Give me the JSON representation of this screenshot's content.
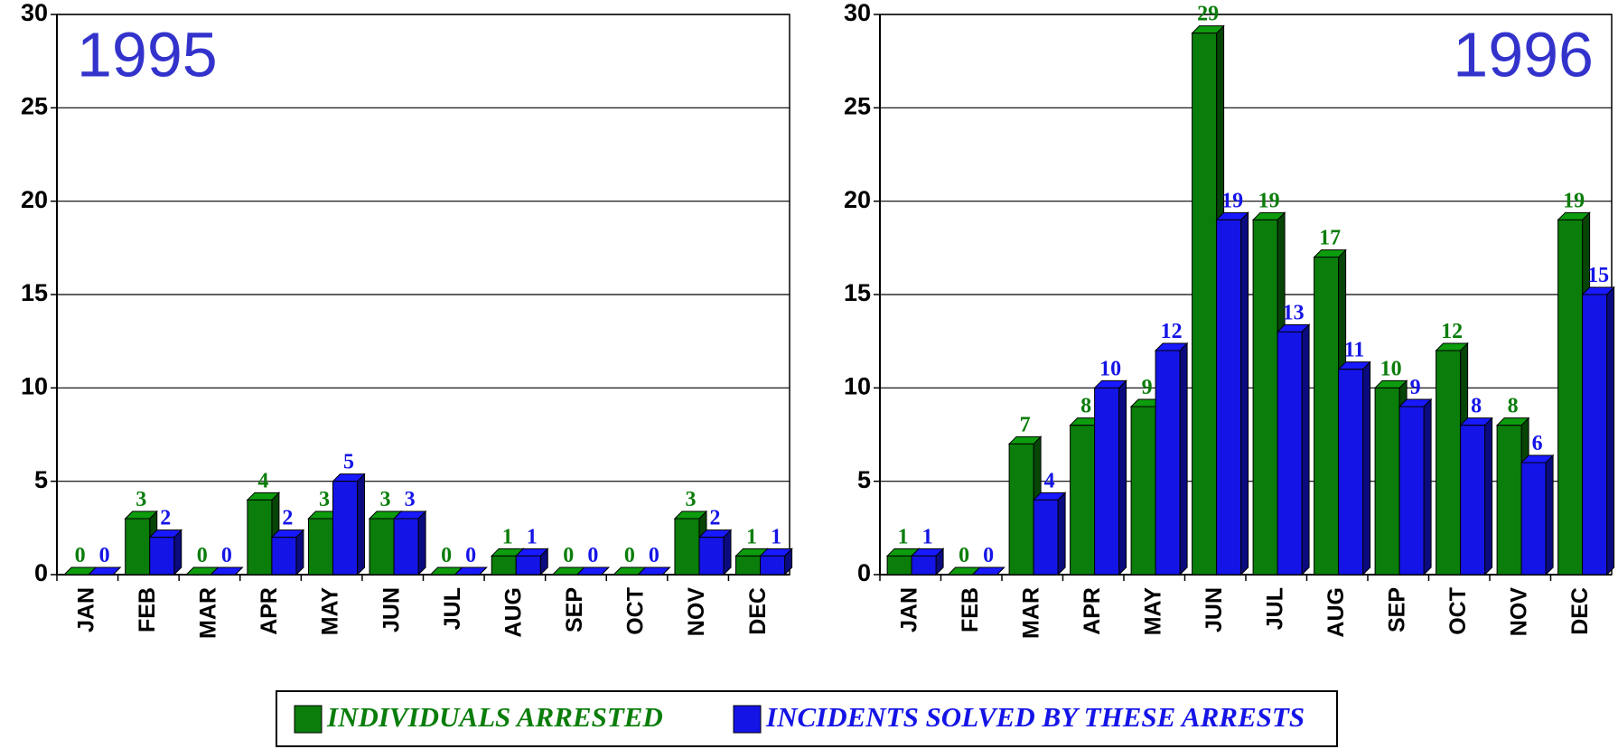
{
  "chart_data": [
    {
      "type": "bar3d",
      "title": "1995",
      "categories": [
        "JAN",
        "FEB",
        "MAR",
        "APR",
        "MAY",
        "JUN",
        "JUL",
        "AUG",
        "SEP",
        "OCT",
        "NOV",
        "DEC"
      ],
      "series": [
        {
          "name": "INDIVIDUALS ARRESTED",
          "color": "#0a7d0a",
          "values": [
            0,
            3,
            0,
            4,
            3,
            3,
            0,
            1,
            0,
            0,
            3,
            1
          ]
        },
        {
          "name": "INCIDENTS SOLVED BY THESE ARRESTS",
          "color": "#1414e6",
          "values": [
            0,
            2,
            0,
            2,
            5,
            3,
            0,
            1,
            0,
            0,
            2,
            1
          ]
        }
      ],
      "ylim": [
        0,
        30
      ],
      "yticks": [
        0,
        5,
        10,
        15,
        20,
        25,
        30
      ],
      "grid": true,
      "title_position": "left"
    },
    {
      "type": "bar3d",
      "title": "1996",
      "categories": [
        "JAN",
        "FEB",
        "MAR",
        "APR",
        "MAY",
        "JUN",
        "JUL",
        "AUG",
        "SEP",
        "OCT",
        "NOV",
        "DEC"
      ],
      "series": [
        {
          "color": "#0a7d0a",
          "values": [
            1,
            0,
            7,
            8,
            9,
            29,
            19,
            17,
            10,
            12,
            8,
            19
          ]
        },
        {
          "color": "#1414e6",
          "values": [
            1,
            0,
            4,
            10,
            12,
            19,
            13,
            11,
            9,
            8,
            6,
            15
          ]
        }
      ],
      "ylim": [
        0,
        30
      ],
      "yticks": [
        0,
        5,
        10,
        15,
        20,
        25,
        30
      ],
      "grid": true,
      "title_position": "right"
    }
  ]
}
